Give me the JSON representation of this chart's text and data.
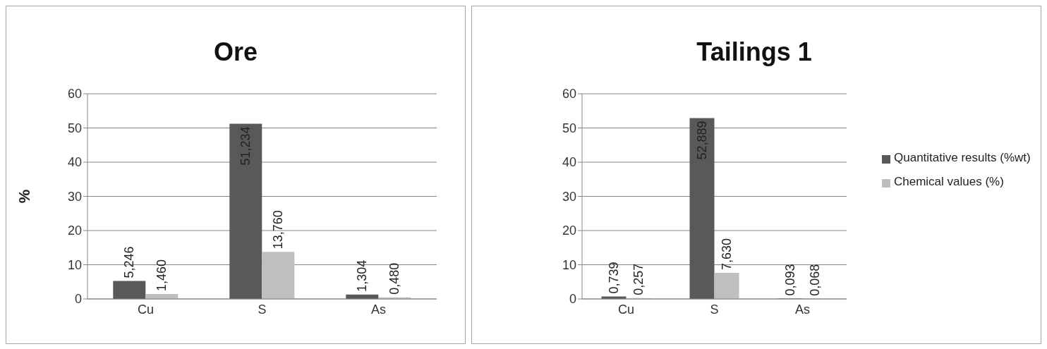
{
  "chart_data": [
    {
      "type": "bar",
      "title": "Ore",
      "ylabel": "%",
      "categories": [
        "Cu",
        "S",
        "As"
      ],
      "series": [
        {
          "color": "#595959",
          "values": [
            5.246,
            51.234,
            1.304
          ],
          "value_labels": [
            "5,246",
            "51,234",
            "1,304"
          ]
        },
        {
          "color": "#bfbfbf",
          "values": [
            1.46,
            13.76,
            0.48
          ],
          "value_labels": [
            "1,460",
            "13,760",
            "0,480"
          ]
        }
      ],
      "ylim": [
        0,
        60
      ],
      "yticks": [
        0,
        10,
        20,
        30,
        40,
        50,
        60
      ],
      "grid": "y",
      "legend": false
    },
    {
      "type": "bar",
      "title": "Tailings 1",
      "categories": [
        "Cu",
        "S",
        "As"
      ],
      "series": [
        {
          "name": "Quantitative results (%wt)",
          "color": "#595959",
          "values": [
            0.739,
            52.889,
            0.093
          ],
          "value_labels": [
            "0,739",
            "52,889",
            "0,093"
          ]
        },
        {
          "name": "Chemical values (%)",
          "color": "#bfbfbf",
          "values": [
            0.257,
            7.63,
            0.068
          ],
          "value_labels": [
            "0,257",
            "7,630",
            "0,068"
          ]
        }
      ],
      "ylim": [
        0,
        60
      ],
      "yticks": [
        0,
        10,
        20,
        30,
        40,
        50,
        60
      ],
      "grid": "y",
      "legend": "right"
    }
  ]
}
